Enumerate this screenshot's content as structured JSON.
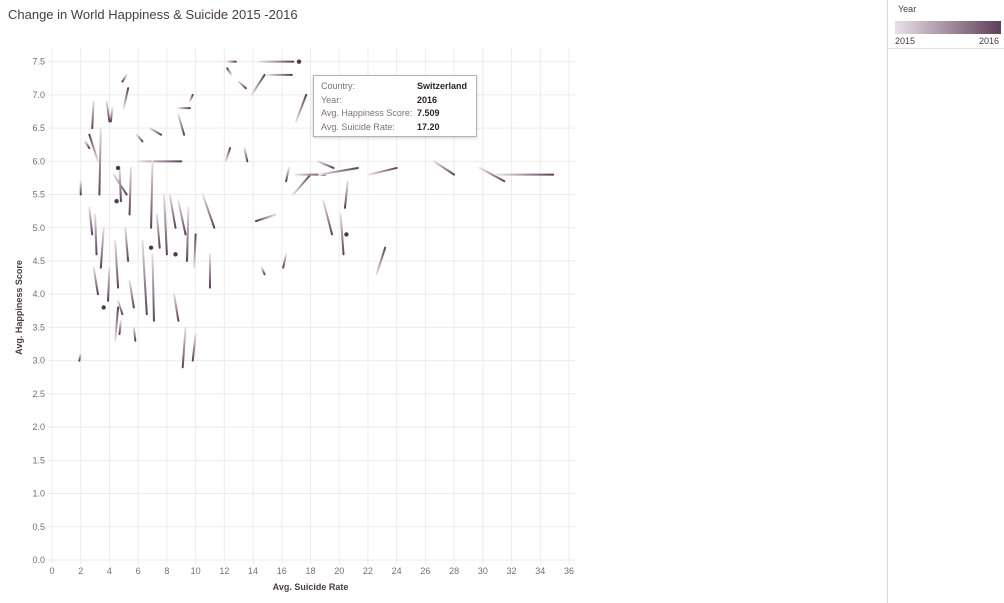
{
  "title": "Change in World Happiness & Suicide 2015 -2016",
  "legend": {
    "title": "Year",
    "min_label": "2015",
    "max_label": "2016",
    "color_2015": "#eadfe8",
    "color_2016": "#5e3f58"
  },
  "tooltip": {
    "rows": [
      {
        "key": "Country:",
        "value": "Switzerland"
      },
      {
        "key": "Year:",
        "value": "2016"
      },
      {
        "key": "Avg. Happiness Score:",
        "value": "7.509"
      },
      {
        "key": "Avg. Suicide Rate:",
        "value": "17.20"
      }
    ]
  },
  "chart_data": {
    "type": "line",
    "title": "Change in World Happiness & Suicide 2015 -2016",
    "xlabel": "Avg. Suicide Rate",
    "ylabel": "Avg. Happiness Score",
    "xlim": [
      0,
      36
    ],
    "ylim": [
      0,
      7.6
    ],
    "xticks": [
      0,
      2,
      4,
      6,
      8,
      10,
      12,
      14,
      16,
      18,
      20,
      22,
      24,
      26,
      28,
      30,
      32,
      34,
      36
    ],
    "yticks": [
      "0.0",
      "0.5",
      "1.0",
      "1.5",
      "2.0",
      "2.5",
      "3.0",
      "3.5",
      "4.0",
      "4.5",
      "5.0",
      "5.5",
      "6.0",
      "6.5",
      "7.0",
      "7.5"
    ],
    "grid": true,
    "legend_position": "top-right",
    "color_encoding": "Year (2015 light to 2016 dark)",
    "segments": [
      [
        2.0,
        3.1,
        1.9,
        3.0
      ],
      [
        2.0,
        5.7,
        2.0,
        5.5
      ],
      [
        2.3,
        6.3,
        2.6,
        6.2
      ],
      [
        2.9,
        6.9,
        2.8,
        6.5
      ],
      [
        3.2,
        6.0,
        2.6,
        6.4
      ],
      [
        3.4,
        6.5,
        3.3,
        5.5
      ],
      [
        2.6,
        5.3,
        2.8,
        4.9
      ],
      [
        3.0,
        5.2,
        3.1,
        4.6
      ],
      [
        3.6,
        5.0,
        3.4,
        4.4
      ],
      [
        2.9,
        4.4,
        3.2,
        4.0
      ],
      [
        4.0,
        4.4,
        3.9,
        3.9
      ],
      [
        4.2,
        6.8,
        4.1,
        6.6
      ],
      [
        4.3,
        5.8,
        5.2,
        5.5
      ],
      [
        4.7,
        5.9,
        4.8,
        5.4
      ],
      [
        5.2,
        7.3,
        4.9,
        7.2
      ],
      [
        5.0,
        6.8,
        5.3,
        7.1
      ],
      [
        5.5,
        5.9,
        5.4,
        5.2
      ],
      [
        4.4,
        4.8,
        4.6,
        4.1
      ],
      [
        5.1,
        5.0,
        5.3,
        4.5
      ],
      [
        5.4,
        4.2,
        5.7,
        3.8
      ],
      [
        4.6,
        3.9,
        4.9,
        3.7
      ],
      [
        4.8,
        3.6,
        4.7,
        3.4
      ],
      [
        5.9,
        6.4,
        6.3,
        6.3
      ],
      [
        6.0,
        6.0,
        9.0,
        6.0
      ],
      [
        6.8,
        6.5,
        7.6,
        6.4
      ],
      [
        7.0,
        6.0,
        6.9,
        5.0
      ],
      [
        7.3,
        5.2,
        7.5,
        4.7
      ],
      [
        8.2,
        5.5,
        8.6,
        5.0
      ],
      [
        8.8,
        6.7,
        9.2,
        6.4
      ],
      [
        8.8,
        6.8,
        9.6,
        6.8
      ],
      [
        7.8,
        5.5,
        8.0,
        4.6
      ],
      [
        8.8,
        5.4,
        9.3,
        4.9
      ],
      [
        9.5,
        5.3,
        9.4,
        4.5
      ],
      [
        9.9,
        4.4,
        10.0,
        4.9
      ],
      [
        10.5,
        5.5,
        11.3,
        5.0
      ],
      [
        11.0,
        4.6,
        11.0,
        4.1
      ],
      [
        12.2,
        7.5,
        12.8,
        7.5
      ],
      [
        12.5,
        7.3,
        12.2,
        7.4
      ],
      [
        13.0,
        7.2,
        13.5,
        7.1
      ],
      [
        13.9,
        7.0,
        14.8,
        7.3
      ],
      [
        14.4,
        7.5,
        16.8,
        7.5
      ],
      [
        15.0,
        7.3,
        16.7,
        7.3
      ],
      [
        12.1,
        6.0,
        12.4,
        6.2
      ],
      [
        13.4,
        6.2,
        13.6,
        6.0
      ],
      [
        15.6,
        5.2,
        14.2,
        5.1
      ],
      [
        16.5,
        5.9,
        16.3,
        5.7
      ],
      [
        16.8,
        5.5,
        18.0,
        5.8
      ],
      [
        17.0,
        5.8,
        19.0,
        5.8
      ],
      [
        18.5,
        6.0,
        19.6,
        5.9
      ],
      [
        18.6,
        5.8,
        21.3,
        5.9
      ],
      [
        22.1,
        5.8,
        24.0,
        5.9
      ],
      [
        26.6,
        6.0,
        28.0,
        5.8
      ],
      [
        29.8,
        5.9,
        31.5,
        5.7
      ],
      [
        31.0,
        5.8,
        34.9,
        5.8
      ],
      [
        17.0,
        6.6,
        17.7,
        7.0
      ],
      [
        18.9,
        5.4,
        19.5,
        4.9
      ],
      [
        20.1,
        5.2,
        20.3,
        4.6
      ],
      [
        20.6,
        5.7,
        20.4,
        5.3
      ],
      [
        22.6,
        4.3,
        23.2,
        4.7
      ],
      [
        14.6,
        4.4,
        14.8,
        4.3
      ],
      [
        9.3,
        3.5,
        9.1,
        2.9
      ],
      [
        10.0,
        3.4,
        9.8,
        3.0
      ],
      [
        8.5,
        4.0,
        8.8,
        3.6
      ],
      [
        7.0,
        4.6,
        7.1,
        3.6
      ],
      [
        6.3,
        4.8,
        6.6,
        3.7
      ],
      [
        5.7,
        3.5,
        5.8,
        3.3
      ],
      [
        3.8,
        6.9,
        4.0,
        6.6
      ],
      [
        4.4,
        3.3,
        4.6,
        3.8
      ],
      [
        16.3,
        4.6,
        16.1,
        4.4
      ],
      [
        9.6,
        6.9,
        9.8,
        7.0
      ]
    ],
    "points": [
      [
        17.2,
        7.5
      ],
      [
        4.6,
        5.9
      ],
      [
        4.5,
        5.4
      ],
      [
        3.6,
        3.8
      ],
      [
        8.6,
        4.6
      ],
      [
        20.5,
        4.9
      ],
      [
        6.9,
        4.7
      ]
    ]
  }
}
